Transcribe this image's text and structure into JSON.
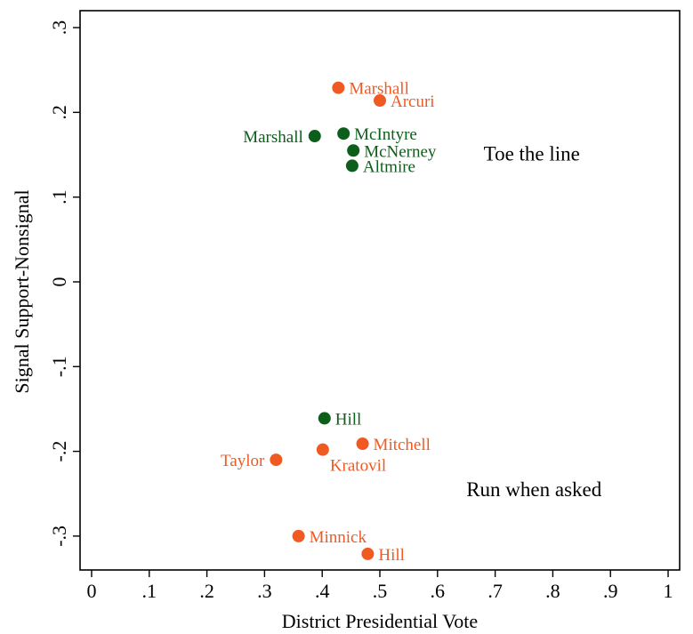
{
  "chart_data": {
    "type": "scatter",
    "title": "",
    "xlabel": "District Presidential Vote",
    "ylabel": "Signal Support-Nonsignal",
    "xlim": [
      -0.02,
      1.02
    ],
    "ylim": [
      -0.34,
      0.32
    ],
    "xticks": [
      {
        "value": 0,
        "label": "0"
      },
      {
        "value": 0.1,
        "label": ".1"
      },
      {
        "value": 0.2,
        "label": ".2"
      },
      {
        "value": 0.3,
        "label": ".3"
      },
      {
        "value": 0.4,
        "label": ".4"
      },
      {
        "value": 0.5,
        "label": ".5"
      },
      {
        "value": 0.6,
        "label": ".6"
      },
      {
        "value": 0.7,
        "label": ".7"
      },
      {
        "value": 0.8,
        "label": ".8"
      },
      {
        "value": 0.9,
        "label": ".9"
      },
      {
        "value": 1.0,
        "label": "1"
      }
    ],
    "yticks": [
      {
        "value": 0.3,
        "label": ".3"
      },
      {
        "value": 0.2,
        "label": ".2"
      },
      {
        "value": 0.1,
        "label": ".1"
      },
      {
        "value": 0,
        "label": "0"
      },
      {
        "value": -0.1,
        "label": "-.1"
      },
      {
        "value": -0.2,
        "label": "-.2"
      },
      {
        "value": -0.3,
        "label": "-.3"
      }
    ],
    "grid": false,
    "colors": {
      "orange": "#f05a22",
      "green": "#0d5e1a"
    },
    "points": [
      {
        "name": "Marshall",
        "x": 0.428,
        "y": 0.229,
        "color": "orange",
        "label_side": "right"
      },
      {
        "name": "Arcuri",
        "x": 0.5,
        "y": 0.214,
        "color": "orange",
        "label_side": "right"
      },
      {
        "name": "Marshall",
        "x": 0.387,
        "y": 0.172,
        "color": "green",
        "label_side": "left"
      },
      {
        "name": "McIntyre",
        "x": 0.437,
        "y": 0.175,
        "color": "green",
        "label_side": "right"
      },
      {
        "name": "McNerney",
        "x": 0.454,
        "y": 0.155,
        "color": "green",
        "label_side": "right"
      },
      {
        "name": "Altmire",
        "x": 0.452,
        "y": 0.137,
        "color": "green",
        "label_side": "right"
      },
      {
        "name": "Hill",
        "x": 0.404,
        "y": -0.161,
        "color": "green",
        "label_side": "right"
      },
      {
        "name": "Mitchell",
        "x": 0.47,
        "y": -0.191,
        "color": "orange",
        "label_side": "right"
      },
      {
        "name": "Kratovil",
        "x": 0.401,
        "y": -0.198,
        "color": "orange",
        "label_side": "below-right"
      },
      {
        "name": "Taylor",
        "x": 0.32,
        "y": -0.21,
        "color": "orange",
        "label_side": "left"
      },
      {
        "name": "Minnick",
        "x": 0.359,
        "y": -0.3,
        "color": "orange",
        "label_side": "right"
      },
      {
        "name": "Hill",
        "x": 0.479,
        "y": -0.321,
        "color": "orange",
        "label_side": "right"
      }
    ],
    "annotations": [
      {
        "text": "Toe the line",
        "x": 0.68,
        "y": 0.143
      },
      {
        "text": "Run when asked",
        "x": 0.65,
        "y": -0.253
      }
    ]
  }
}
